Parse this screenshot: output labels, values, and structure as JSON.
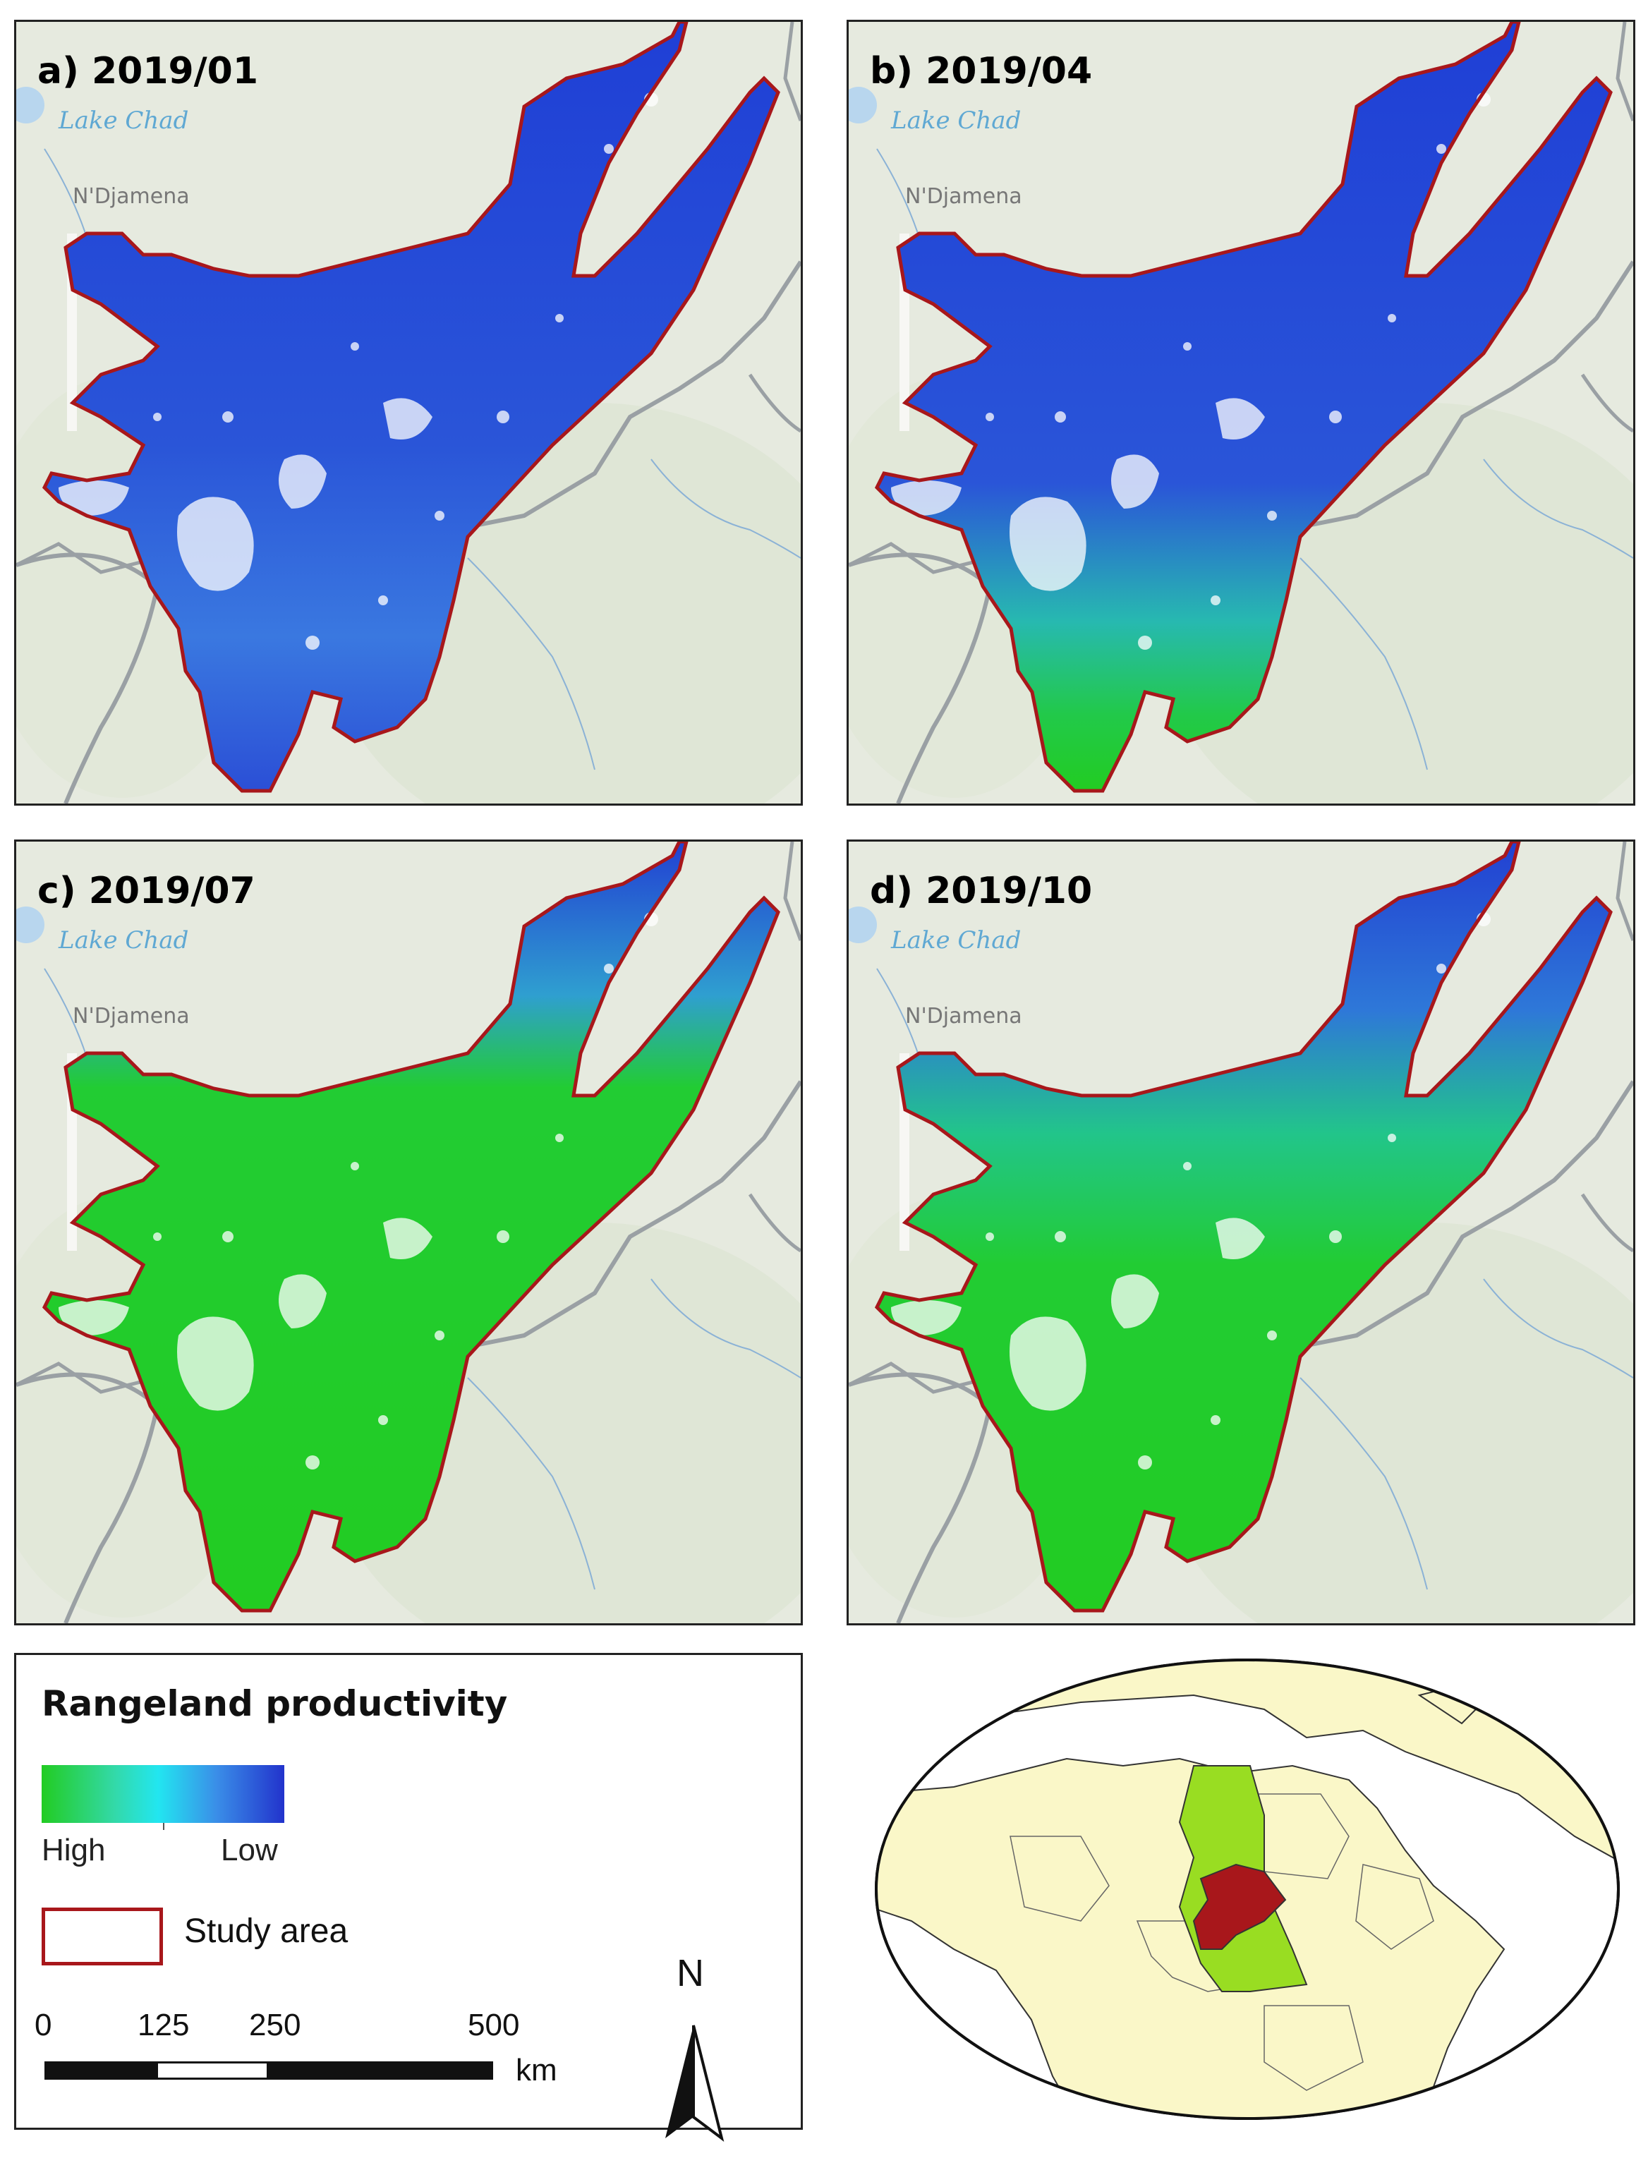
{
  "panels": [
    {
      "label": "a) 2019/01",
      "month": "2019/01",
      "dominant": "low"
    },
    {
      "label": "b) 2019/04",
      "month": "2019/04",
      "dominant": "low-with-south-high"
    },
    {
      "label": "c) 2019/07",
      "month": "2019/07",
      "dominant": "high"
    },
    {
      "label": "d) 2019/10",
      "month": "2019/10",
      "dominant": "high-with-north-low"
    }
  ],
  "basemap": {
    "lake_label": "Lake Chad",
    "city_label": "N'Djamena"
  },
  "legend": {
    "title": "Rangeland productivity",
    "gradient_high": "High",
    "gradient_low": "Low",
    "gradient_colors": [
      "#22cc22",
      "#22e6f0",
      "#2233cc"
    ],
    "study_area_label": "Study area",
    "study_area_color": "#a8171b",
    "scale_labels": [
      "0",
      "125",
      "250",
      "500"
    ],
    "scale_unit": "km",
    "north_label": "N"
  },
  "colors": {
    "high": "#22cc22",
    "mid": "#22e6f0",
    "low": "#2233cc",
    "study_outline": "#a8171b",
    "land": "#faf7c8",
    "chad": "#99dd22"
  }
}
